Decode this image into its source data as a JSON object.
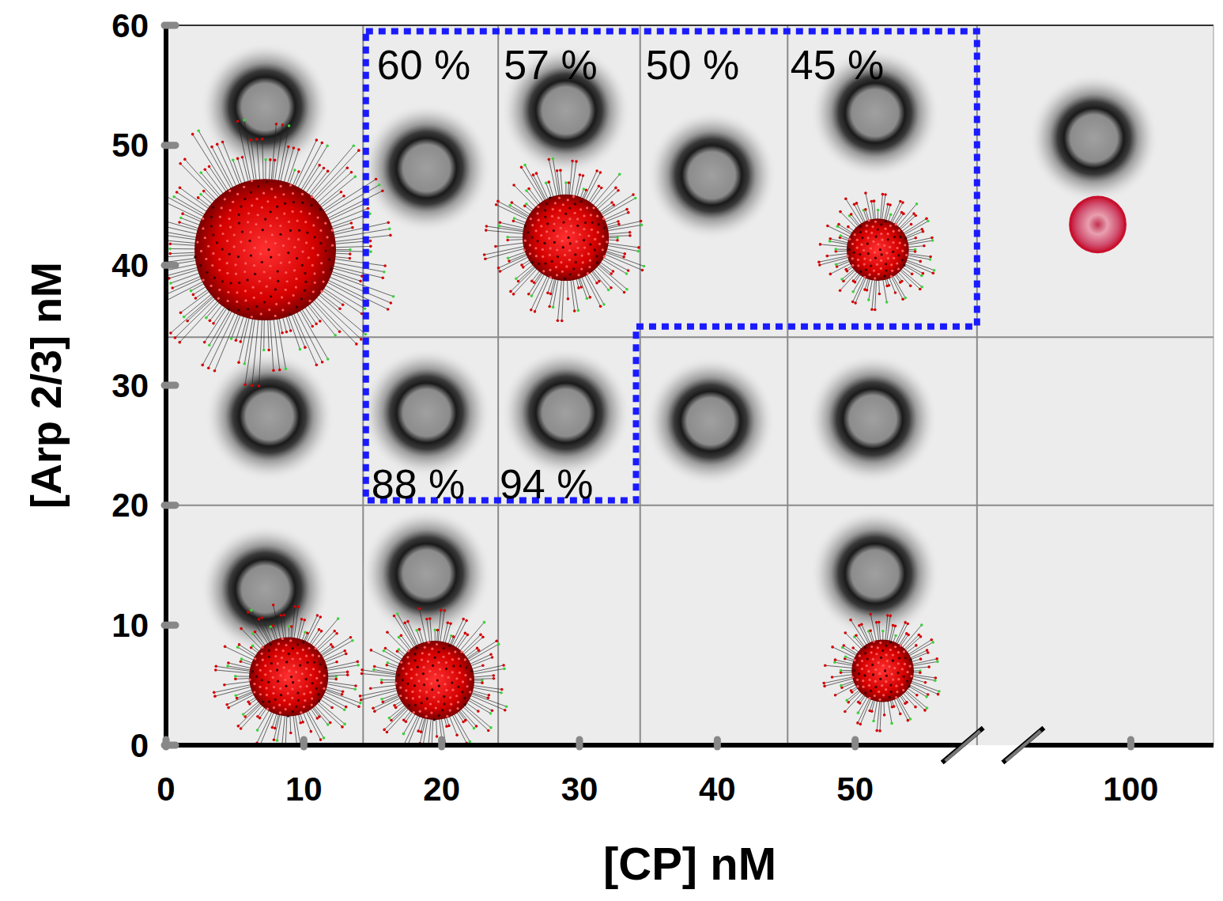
{
  "chart_data": {
    "type": "scatter",
    "xlabel": "[CP] nM",
    "ylabel": "[Arp 2/3] nM",
    "xlim": [
      0,
      115
    ],
    "ylim": [
      0,
      60
    ],
    "xticks": [
      0,
      10,
      20,
      30,
      40,
      50,
      100
    ],
    "yticks": [
      0,
      10,
      20,
      30,
      40,
      50,
      60
    ],
    "grid": true,
    "grid_x": [
      14.3,
      24.1,
      34.4,
      45.1,
      72.1
    ],
    "grid_y": [
      20,
      34
    ],
    "series": [
      {
        "marker": "disc",
        "color": "#1a1a1a",
        "x": [
          7.2,
          18.9,
          29,
          39.6,
          53.6,
          93.3,
          7.5,
          18.9,
          29,
          39.5,
          53.2,
          7.2,
          18.9,
          53.6
        ],
        "values": [
          53.2,
          48.1,
          52.9,
          47.5,
          52.7,
          50.6,
          27.4,
          27.7,
          27.7,
          27,
          27.2,
          13,
          14.3,
          14.3
        ]
      },
      {
        "marker": "network",
        "color": "#d40000",
        "x": [
          7.2,
          29,
          54.1,
          8.9,
          19.5,
          55
        ],
        "values": [
          41.3,
          42.3,
          41.3,
          5.7,
          5.4,
          6.2
        ],
        "sizes": [
          5.9,
          3.6,
          2.6,
          3.3,
          3.3,
          2.6
        ]
      },
      {
        "marker": "sphere",
        "color": "#c8102e",
        "x": [
          94
        ],
        "values": [
          43.4
        ],
        "sizes": [
          2.3
        ]
      }
    ],
    "region": {
      "x": [
        14.5,
        72.1,
        72.1,
        34.1,
        34.1,
        14.5
      ],
      "y": [
        59.5,
        59.5,
        34.9,
        34.9,
        20.4,
        20.4
      ],
      "color": "#1a1aff",
      "line_style": "dotted"
    },
    "annotations": [
      {
        "text": "60 %",
        "x": 15.3,
        "y": 55.5
      },
      {
        "text": "57 %",
        "x": 24.5,
        "y": 55.5
      },
      {
        "text": "50 %",
        "x": 34.8,
        "y": 55.5
      },
      {
        "text": "45 %",
        "x": 45.3,
        "y": 55.5
      },
      {
        "text": "88 %",
        "x": 14.9,
        "y": 20.6
      },
      {
        "text": "94 %",
        "x": 24.2,
        "y": 20.6
      }
    ]
  }
}
